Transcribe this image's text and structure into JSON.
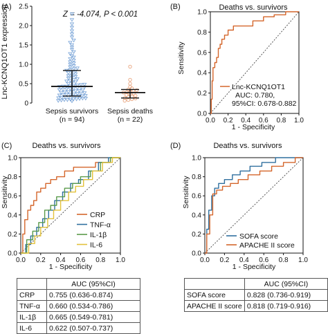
{
  "chart_data": [
    {
      "panel": "(A)",
      "type": "scatter",
      "annotation": "Z = -4.074, P < 0.001",
      "ylabel": "Lnc-KCNQ1OT1 expression",
      "ylim": [
        0,
        2.5
      ],
      "yticks": [
        "0",
        "0.5",
        "1.0",
        "1.5",
        "2.0",
        "2.5"
      ],
      "categories": [
        "Sepsis survivors",
        "Sepsis deaths"
      ],
      "ns": [
        "(n = 94)",
        "(n = 22)"
      ],
      "colors": [
        "#7fa8d9",
        "#e8a37c"
      ],
      "median": [
        0.43,
        0.27
      ],
      "q1": [
        0.18,
        0.13
      ],
      "q3": [
        0.84,
        0.35
      ],
      "series": [
        {
          "values": [
            0.05,
            0.06,
            0.07,
            0.08,
            0.08,
            0.09,
            0.1,
            0.1,
            0.11,
            0.12,
            0.12,
            0.13,
            0.14,
            0.15,
            0.15,
            0.16,
            0.17,
            0.18,
            0.18,
            0.19,
            0.2,
            0.21,
            0.22,
            0.22,
            0.23,
            0.24,
            0.25,
            0.26,
            0.27,
            0.28,
            0.29,
            0.3,
            0.31,
            0.32,
            0.33,
            0.34,
            0.35,
            0.36,
            0.37,
            0.38,
            0.39,
            0.4,
            0.41,
            0.42,
            0.43,
            0.43,
            0.44,
            0.45,
            0.46,
            0.47,
            0.48,
            0.5,
            0.52,
            0.54,
            0.56,
            0.58,
            0.6,
            0.62,
            0.64,
            0.66,
            0.68,
            0.7,
            0.72,
            0.75,
            0.78,
            0.8,
            0.82,
            0.84,
            0.86,
            0.88,
            0.9,
            0.93,
            0.96,
            1.0,
            1.03,
            1.06,
            1.1,
            1.14,
            1.18,
            1.22,
            1.27,
            1.32,
            1.38,
            1.44,
            1.5,
            1.56,
            1.62,
            1.7,
            1.78,
            1.86,
            1.95,
            2.04,
            2.15,
            2.3
          ]
        },
        {
          "values": [
            0.06,
            0.08,
            0.1,
            0.12,
            0.13,
            0.15,
            0.17,
            0.19,
            0.21,
            0.23,
            0.25,
            0.27,
            0.28,
            0.3,
            0.31,
            0.33,
            0.35,
            0.38,
            0.42,
            0.5,
            0.6,
            0.94
          ]
        }
      ]
    },
    {
      "panel": "(B)",
      "type": "line",
      "title": "Deaths vs. survivors",
      "xlabel": "1 - Specificity",
      "ylabel": "Sensitivity",
      "xlim": [
        0,
        1
      ],
      "ylim": [
        0,
        1
      ],
      "ticks": [
        "0.0",
        "0.2",
        "0.4",
        "0.6",
        "0.8",
        "1.0"
      ],
      "legend_position": "bottom-right",
      "legend": [
        "Lnc-KCNQ1OT1",
        "AUC: 0.780,",
        "95%CI: 0.678-0.882"
      ],
      "series": [
        {
          "name": "Lnc-KCNQ1OT1",
          "color": "#d4652a",
          "x": [
            0,
            0.01,
            0.01,
            0.02,
            0.02,
            0.03,
            0.03,
            0.05,
            0.05,
            0.07,
            0.07,
            0.09,
            0.09,
            0.11,
            0.11,
            0.13,
            0.13,
            0.16,
            0.16,
            0.2,
            0.2,
            0.26,
            0.26,
            0.36,
            0.36,
            0.48,
            0.48,
            0.6,
            0.6,
            0.72,
            0.72,
            0.85,
            0.85,
            1.0
          ],
          "y": [
            0,
            0,
            0.14,
            0.14,
            0.32,
            0.32,
            0.45,
            0.45,
            0.5,
            0.5,
            0.55,
            0.55,
            0.64,
            0.64,
            0.68,
            0.68,
            0.73,
            0.73,
            0.77,
            0.77,
            0.82,
            0.82,
            0.86,
            0.86,
            0.86,
            0.86,
            0.91,
            0.91,
            0.95,
            0.95,
            0.97,
            0.97,
            1.0,
            1.0
          ]
        }
      ]
    },
    {
      "panel": "(C)",
      "type": "line",
      "title": "Deaths vs. survivors",
      "xlabel": "1 - Specificity",
      "ylabel": "Sensitivity",
      "xlim": [
        0,
        1
      ],
      "ylim": [
        0,
        1
      ],
      "ticks": [
        "0.0",
        "0.2",
        "0.4",
        "0.6",
        "0.8",
        "1.0"
      ],
      "legend_position": "bottom-right",
      "series": [
        {
          "name": "CRP",
          "color": "#d4652a",
          "x": [
            0,
            0.02,
            0.02,
            0.04,
            0.04,
            0.07,
            0.07,
            0.1,
            0.1,
            0.13,
            0.13,
            0.16,
            0.16,
            0.2,
            0.2,
            0.25,
            0.25,
            0.3,
            0.3,
            0.36,
            0.36,
            0.44,
            0.44,
            0.53,
            0.53,
            0.62,
            0.62,
            0.75,
            0.75,
            0.9,
            0.9,
            1.0
          ],
          "y": [
            0,
            0,
            0.2,
            0.2,
            0.35,
            0.35,
            0.45,
            0.45,
            0.5,
            0.5,
            0.55,
            0.55,
            0.64,
            0.64,
            0.68,
            0.68,
            0.73,
            0.73,
            0.77,
            0.77,
            0.8,
            0.8,
            0.86,
            0.86,
            0.9,
            0.9,
            0.9,
            0.9,
            0.95,
            0.95,
            1.0,
            1.0
          ]
        },
        {
          "name": "TNF-α",
          "color": "#2f6f9e",
          "x": [
            0,
            0.05,
            0.05,
            0.1,
            0.1,
            0.16,
            0.16,
            0.22,
            0.22,
            0.28,
            0.28,
            0.34,
            0.34,
            0.42,
            0.42,
            0.5,
            0.5,
            0.58,
            0.58,
            0.68,
            0.68,
            0.78,
            0.78,
            0.88,
            0.88,
            1.0
          ],
          "y": [
            0,
            0,
            0.09,
            0.09,
            0.18,
            0.18,
            0.27,
            0.27,
            0.36,
            0.36,
            0.45,
            0.45,
            0.55,
            0.55,
            0.64,
            0.64,
            0.73,
            0.73,
            0.77,
            0.77,
            0.86,
            0.86,
            0.95,
            0.95,
            1.0,
            1.0
          ]
        },
        {
          "name": "IL-1β",
          "color": "#5a9a4a",
          "x": [
            0,
            0.06,
            0.06,
            0.12,
            0.12,
            0.18,
            0.18,
            0.24,
            0.24,
            0.3,
            0.3,
            0.36,
            0.36,
            0.44,
            0.44,
            0.52,
            0.52,
            0.6,
            0.6,
            0.7,
            0.7,
            0.8,
            0.8,
            0.9,
            0.9,
            1.0
          ],
          "y": [
            0,
            0,
            0.14,
            0.14,
            0.23,
            0.23,
            0.32,
            0.32,
            0.45,
            0.45,
            0.5,
            0.5,
            0.59,
            0.59,
            0.68,
            0.68,
            0.73,
            0.73,
            0.8,
            0.8,
            0.86,
            0.86,
            0.95,
            0.95,
            1.0,
            1.0
          ]
        },
        {
          "name": "IL-6",
          "color": "#e3c23a",
          "x": [
            0,
            0.08,
            0.08,
            0.14,
            0.14,
            0.2,
            0.2,
            0.27,
            0.27,
            0.33,
            0.33,
            0.4,
            0.4,
            0.48,
            0.48,
            0.55,
            0.55,
            0.63,
            0.63,
            0.72,
            0.72,
            0.82,
            0.82,
            0.92,
            0.92,
            1.0
          ],
          "y": [
            0,
            0,
            0.1,
            0.1,
            0.18,
            0.18,
            0.27,
            0.27,
            0.36,
            0.36,
            0.45,
            0.45,
            0.55,
            0.55,
            0.64,
            0.64,
            0.7,
            0.7,
            0.77,
            0.77,
            0.86,
            0.86,
            0.95,
            0.95,
            1.0,
            1.0
          ]
        }
      ]
    },
    {
      "panel": "(D)",
      "type": "line",
      "title": "Deaths vs. survivors",
      "xlabel": "1 - Specificity",
      "ylabel": "Sensitivity",
      "xlim": [
        0,
        1
      ],
      "ylim": [
        0,
        1
      ],
      "ticks": [
        "0.0",
        "0.2",
        "0.4",
        "0.6",
        "0.8",
        "1.0"
      ],
      "legend_position": "bottom-right",
      "series": [
        {
          "name": "SOFA score",
          "color": "#2f6f9e",
          "x": [
            0,
            0.02,
            0.02,
            0.04,
            0.04,
            0.07,
            0.07,
            0.1,
            0.1,
            0.14,
            0.14,
            0.2,
            0.2,
            0.28,
            0.28,
            0.36,
            0.36,
            0.46,
            0.46,
            0.58,
            0.58,
            0.72,
            0.72,
            1.0
          ],
          "y": [
            0,
            0,
            0.25,
            0.25,
            0.45,
            0.45,
            0.6,
            0.6,
            0.68,
            0.68,
            0.73,
            0.73,
            0.77,
            0.77,
            0.82,
            0.82,
            0.86,
            0.86,
            0.91,
            0.91,
            0.95,
            0.95,
            1.0,
            1.0
          ]
        },
        {
          "name": "APACHE II score",
          "color": "#d4652a",
          "x": [
            0,
            0.02,
            0.02,
            0.05,
            0.05,
            0.08,
            0.08,
            0.12,
            0.12,
            0.18,
            0.18,
            0.26,
            0.26,
            0.34,
            0.34,
            0.44,
            0.44,
            0.56,
            0.56,
            0.68,
            0.68,
            0.8,
            0.8,
            0.92,
            0.92,
            1.0
          ],
          "y": [
            0,
            0,
            0.2,
            0.2,
            0.4,
            0.4,
            0.62,
            0.62,
            0.66,
            0.66,
            0.7,
            0.7,
            0.73,
            0.73,
            0.77,
            0.77,
            0.82,
            0.82,
            0.86,
            0.86,
            0.91,
            0.91,
            0.95,
            0.95,
            1.0,
            1.0
          ]
        }
      ]
    },
    {
      "panel": "table-C",
      "type": "table",
      "header": [
        "",
        "AUC (95%CI)"
      ],
      "rows": [
        [
          "CRP",
          "0.755 (0.636-0.874)"
        ],
        [
          "TNF-α",
          "0.660 (0.534-0.786)"
        ],
        [
          "IL-1β",
          "0.665 (0.549-0.781)"
        ],
        [
          "IL-6",
          "0.622 (0.507-0.737)"
        ]
      ]
    },
    {
      "panel": "table-D",
      "type": "table",
      "header": [
        "",
        "AUC (95%CI)"
      ],
      "rows": [
        [
          "SOFA score",
          "0.828 (0.736-0.919)"
        ],
        [
          "APACHE II score",
          "0.818 (0.719-0.916)"
        ]
      ]
    }
  ]
}
